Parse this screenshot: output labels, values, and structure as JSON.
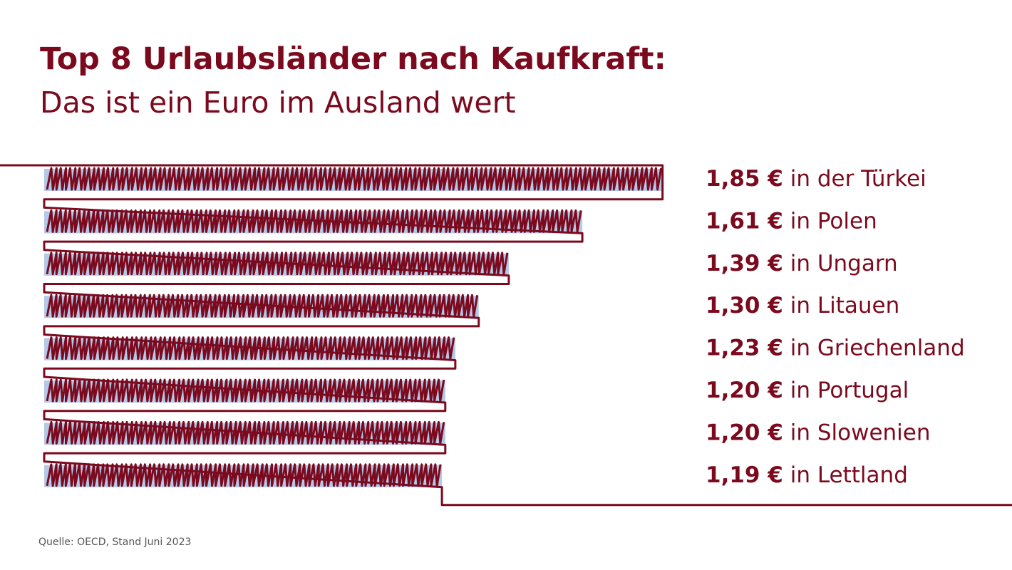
{
  "header": {
    "title": "Top 8 Urlaubsländer nach Kaufkraft:",
    "subtitle": "Das ist ein Euro im Ausland wert"
  },
  "source": "Quelle: OECD, Stand Juni 2023",
  "colors": {
    "accent": "#7b0a1e",
    "bar_fill": "#b4c8e8"
  },
  "chart_data": {
    "type": "bar",
    "orientation": "horizontal",
    "categories": [
      "in der Türkei",
      "in Polen",
      "in Ungarn",
      "in Litauen",
      "in Griechenland",
      "in Portugal",
      "in Slowenien",
      "in Lettland"
    ],
    "values": [
      1.85,
      1.61,
      1.39,
      1.3,
      1.23,
      1.2,
      1.2,
      1.19
    ],
    "value_labels": [
      "1,85 €",
      "1,61 €",
      "1,39 €",
      "1,30 €",
      "1,23 €",
      "1,20 €",
      "1,20 €",
      "1,19 €"
    ],
    "unit": "€"
  }
}
